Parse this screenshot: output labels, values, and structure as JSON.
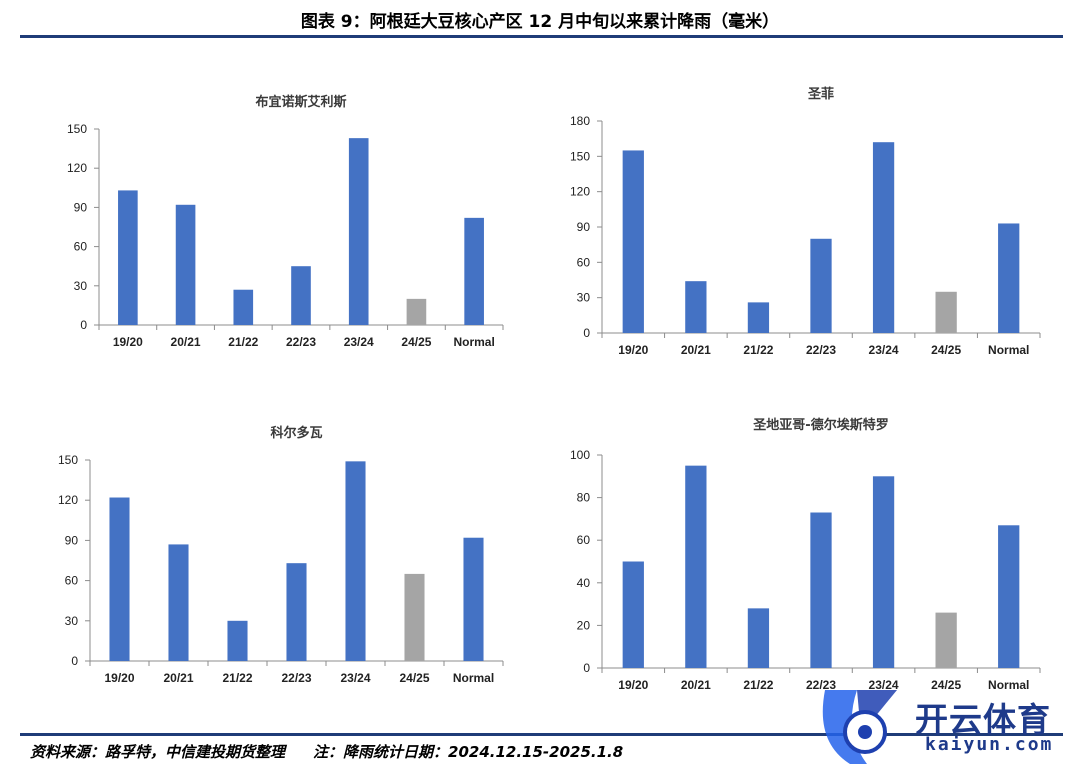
{
  "header": {
    "title": "图表 9：阿根廷大豆核心产区 12 月中旬以来累计降雨（毫米）"
  },
  "footer": {
    "source": "资料来源：路孚特，中信建投期货整理",
    "note": "注：降雨统计日期：2024.12.15-2025.1.8"
  },
  "watermark": {
    "text": "开云体育",
    "sub": "kaiyun.com"
  },
  "colors": {
    "primary_bar": "#4472c4",
    "highlight_bar": "#a5a5a5",
    "rule": "#1f3c78"
  },
  "chart_data": [
    {
      "type": "bar",
      "title": "布宜诺斯艾利斯",
      "categories": [
        "19/20",
        "20/21",
        "21/22",
        "22/23",
        "23/24",
        "24/25",
        "Normal"
      ],
      "values": [
        103,
        92,
        27,
        45,
        143,
        20,
        82
      ],
      "highlight_index": 5,
      "ylim": [
        0,
        150
      ],
      "yticks": [
        0,
        30,
        60,
        90,
        120,
        150
      ],
      "grid": false
    },
    {
      "type": "bar",
      "title": "圣菲",
      "categories": [
        "19/20",
        "20/21",
        "21/22",
        "22/23",
        "23/24",
        "24/25",
        "Normal"
      ],
      "values": [
        155,
        44,
        26,
        80,
        162,
        35,
        93
      ],
      "highlight_index": 5,
      "ylim": [
        0,
        180
      ],
      "yticks": [
        0,
        30,
        60,
        90,
        120,
        150,
        180
      ],
      "grid": false
    },
    {
      "type": "bar",
      "title": "科尔多瓦",
      "categories": [
        "19/20",
        "20/21",
        "21/22",
        "22/23",
        "23/24",
        "24/25",
        "Normal"
      ],
      "values": [
        122,
        87,
        30,
        73,
        149,
        65,
        92
      ],
      "highlight_index": 5,
      "ylim": [
        0,
        150
      ],
      "yticks": [
        0,
        30,
        60,
        90,
        120,
        150
      ],
      "grid": false
    },
    {
      "type": "bar",
      "title": "圣地亚哥-德尔埃斯特罗",
      "categories": [
        "19/20",
        "20/21",
        "21/22",
        "22/23",
        "23/24",
        "24/25",
        "Normal"
      ],
      "values": [
        50,
        95,
        28,
        73,
        90,
        26,
        67
      ],
      "highlight_index": 5,
      "ylim": [
        0,
        100
      ],
      "yticks": [
        0,
        20,
        40,
        60,
        80,
        100
      ],
      "grid": false
    }
  ]
}
